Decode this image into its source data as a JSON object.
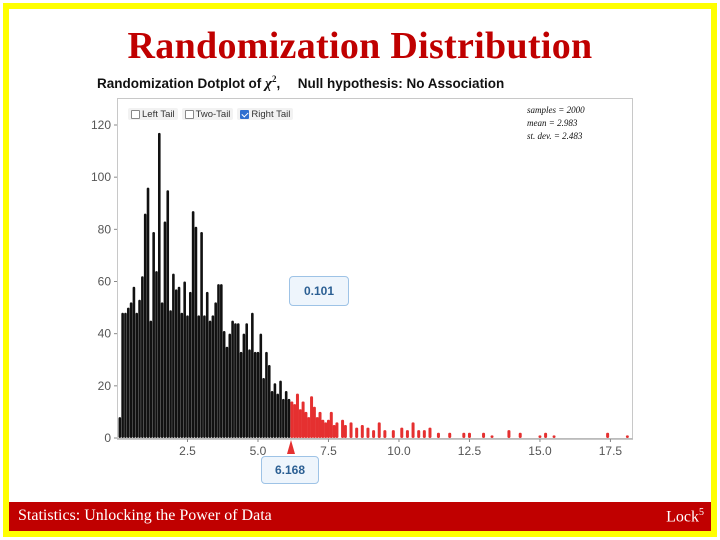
{
  "slide": {
    "title": "Randomization Distribution",
    "footer_left": "Statistics: Unlocking the Power of Data",
    "footer_right_base": "Lock",
    "footer_right_sup": "5",
    "frame_color": "#ffff00",
    "footer_color": "#c00000",
    "title_color": "#c00000"
  },
  "applet": {
    "heading_prefix": "Randomization Dotplot of",
    "heading_symbol": "χ",
    "heading_symbol_sup": "2",
    "heading_suffix": ",",
    "null_hypothesis": "Null hypothesis: No Association",
    "tail_options": [
      {
        "label": "Left Tail",
        "checked": false
      },
      {
        "label": "Two-Tail",
        "checked": false
      },
      {
        "label": "Right Tail",
        "checked": true
      }
    ],
    "stats": {
      "samples": "samples = 2000",
      "mean": "mean = 2.983",
      "sd": "st. dev. = 2.483"
    },
    "proportion_label": "0.101",
    "cutoff_label": "6.168"
  },
  "chart_data": {
    "type": "bar",
    "title": "",
    "xlabel": "",
    "ylabel": "",
    "xlim": [
      0,
      18.3
    ],
    "ylim": [
      0,
      125
    ],
    "x_ticks": [
      2.5,
      5.0,
      7.5,
      10.0,
      12.5,
      15.0,
      17.5
    ],
    "x_tick_labels": [
      "2.5",
      "5.0",
      "7.5",
      "10.0",
      "12.5",
      "15.0",
      "17.5"
    ],
    "y_ticks": [
      0,
      20,
      40,
      60,
      80,
      100,
      120
    ],
    "y_tick_labels": [
      "0",
      "20",
      "40",
      "60",
      "80",
      "100",
      "120"
    ],
    "cutoff": 6.168,
    "tail": "right",
    "colors": {
      "body": "#111111",
      "tail": "#e53030",
      "axis": "#555555"
    },
    "dot_stacks": [
      [
        0.1,
        8
      ],
      [
        0.2,
        48
      ],
      [
        0.3,
        48
      ],
      [
        0.4,
        50
      ],
      [
        0.5,
        52
      ],
      [
        0.6,
        58
      ],
      [
        0.7,
        48
      ],
      [
        0.8,
        53
      ],
      [
        0.9,
        62
      ],
      [
        1.0,
        86
      ],
      [
        1.1,
        96
      ],
      [
        1.2,
        45
      ],
      [
        1.3,
        79
      ],
      [
        1.4,
        64
      ],
      [
        1.5,
        117
      ],
      [
        1.6,
        52
      ],
      [
        1.7,
        83
      ],
      [
        1.8,
        95
      ],
      [
        1.9,
        49
      ],
      [
        2.0,
        63
      ],
      [
        2.1,
        57
      ],
      [
        2.2,
        58
      ],
      [
        2.3,
        48
      ],
      [
        2.4,
        60
      ],
      [
        2.5,
        47
      ],
      [
        2.6,
        56
      ],
      [
        2.7,
        87
      ],
      [
        2.8,
        81
      ],
      [
        2.9,
        47
      ],
      [
        3.0,
        79
      ],
      [
        3.1,
        47
      ],
      [
        3.2,
        56
      ],
      [
        3.3,
        45
      ],
      [
        3.4,
        47
      ],
      [
        3.5,
        52
      ],
      [
        3.6,
        59
      ],
      [
        3.7,
        59
      ],
      [
        3.8,
        41
      ],
      [
        3.9,
        35
      ],
      [
        4.0,
        40
      ],
      [
        4.1,
        45
      ],
      [
        4.2,
        44
      ],
      [
        4.3,
        44
      ],
      [
        4.4,
        33
      ],
      [
        4.5,
        40
      ],
      [
        4.6,
        44
      ],
      [
        4.7,
        34
      ],
      [
        4.8,
        48
      ],
      [
        4.9,
        33
      ],
      [
        5.0,
        33
      ],
      [
        5.1,
        40
      ],
      [
        5.2,
        23
      ],
      [
        5.3,
        33
      ],
      [
        5.4,
        28
      ],
      [
        5.5,
        18
      ],
      [
        5.6,
        21
      ],
      [
        5.7,
        17
      ],
      [
        5.8,
        22
      ],
      [
        5.9,
        15
      ],
      [
        6.0,
        18
      ],
      [
        6.1,
        15
      ],
      [
        6.2,
        14
      ],
      [
        6.3,
        13
      ],
      [
        6.4,
        17
      ],
      [
        6.5,
        11
      ],
      [
        6.6,
        14
      ],
      [
        6.7,
        10
      ],
      [
        6.8,
        8
      ],
      [
        6.9,
        16
      ],
      [
        7.0,
        12
      ],
      [
        7.1,
        8
      ],
      [
        7.2,
        10
      ],
      [
        7.3,
        7
      ],
      [
        7.4,
        6
      ],
      [
        7.5,
        7
      ],
      [
        7.6,
        10
      ],
      [
        7.7,
        5
      ],
      [
        7.8,
        6
      ],
      [
        8.0,
        7
      ],
      [
        8.1,
        5
      ],
      [
        8.3,
        6
      ],
      [
        8.5,
        4
      ],
      [
        8.7,
        5
      ],
      [
        8.9,
        4
      ],
      [
        9.1,
        3
      ],
      [
        9.3,
        6
      ],
      [
        9.5,
        3
      ],
      [
        9.8,
        3
      ],
      [
        10.1,
        4
      ],
      [
        10.3,
        3
      ],
      [
        10.5,
        6
      ],
      [
        10.7,
        3
      ],
      [
        10.9,
        3
      ],
      [
        11.1,
        4
      ],
      [
        11.4,
        2
      ],
      [
        11.8,
        2
      ],
      [
        12.3,
        2
      ],
      [
        12.5,
        2
      ],
      [
        13.0,
        2
      ],
      [
        13.3,
        1
      ],
      [
        13.9,
        3
      ],
      [
        14.3,
        2
      ],
      [
        15.0,
        1
      ],
      [
        15.2,
        2
      ],
      [
        15.5,
        1
      ],
      [
        17.4,
        2
      ],
      [
        18.1,
        1
      ]
    ]
  }
}
